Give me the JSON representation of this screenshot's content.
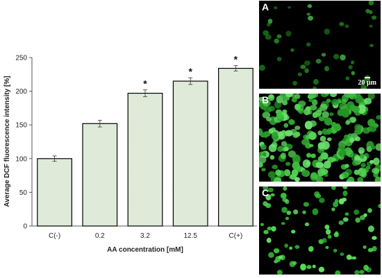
{
  "chart_data": {
    "type": "bar",
    "categories": [
      "C(-)",
      "0.2",
      "3.2",
      "12.5",
      "C(+)"
    ],
    "values": [
      100,
      152,
      197,
      215,
      234
    ],
    "errors": [
      4,
      5,
      5,
      5,
      4
    ],
    "significance": [
      "",
      "",
      "*",
      "*",
      "*"
    ],
    "xlabel": "AA concentration [mM]",
    "ylabel": "Average DCF fluorescence intensity [%]",
    "ylim": [
      0,
      250
    ],
    "yticks": [
      0,
      50,
      100,
      150,
      200,
      250
    ],
    "grid": false,
    "bar_fill": "#e4efdf",
    "bar_edge": "#000000"
  },
  "panels": [
    {
      "letter": "A",
      "density": "sparse, dim green cells",
      "scale_label": "20 µm"
    },
    {
      "letter": "B",
      "density": "dense, bright green cells",
      "scale_label": ""
    },
    {
      "letter": "C",
      "density": "moderate, bright green cells",
      "scale_label": ""
    }
  ]
}
